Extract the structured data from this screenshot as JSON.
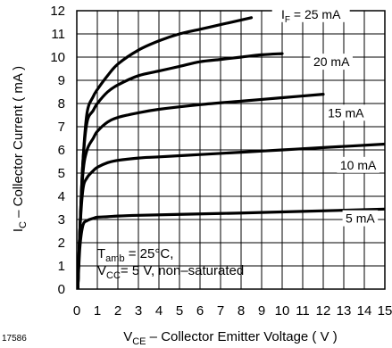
{
  "chart_data": {
    "type": "line",
    "figure_number": "17586",
    "xlabel_main": "V",
    "xlabel_sub": "CE",
    "xlabel_rest": " – Collector Emitter Voltage ( V )",
    "ylabel_main": "I",
    "ylabel_sub": "C",
    "ylabel_rest": " – Collector Current ( mA )",
    "xlim": [
      0,
      15
    ],
    "ylim": [
      0,
      12
    ],
    "xticks": [
      0,
      1,
      2,
      3,
      4,
      5,
      6,
      7,
      8,
      9,
      10,
      11,
      12,
      13,
      14,
      15
    ],
    "yticks": [
      0,
      1,
      2,
      3,
      4,
      5,
      6,
      7,
      8,
      9,
      10,
      11,
      12
    ],
    "grid": true,
    "annotation": {
      "line1_main": "T",
      "line1_sub": "amb",
      "line1_rest": " = 25°C,",
      "line2_main": "V",
      "line2_sub": "CC",
      "line2_rest": "= 5 V, non–saturated"
    },
    "series": [
      {
        "name": "I_F = 25 mA",
        "label_main": "I",
        "label_sub": "F",
        "label_rest": " = 25 mA",
        "x": [
          0.05,
          0.15,
          0.3,
          0.5,
          0.8,
          1,
          1.5,
          2,
          3,
          4,
          5,
          6,
          7,
          8,
          8.5
        ],
        "y": [
          0,
          2.5,
          5.5,
          7.6,
          8.3,
          8.6,
          9.2,
          9.7,
          10.3,
          10.7,
          11.0,
          11.2,
          11.4,
          11.6,
          11.7
        ]
      },
      {
        "name": "20 mA",
        "x": [
          0.05,
          0.15,
          0.3,
          0.5,
          0.8,
          1,
          1.5,
          2,
          3,
          4,
          5,
          6,
          7,
          8,
          9,
          10
        ],
        "y": [
          0,
          2.5,
          5.5,
          7.2,
          7.7,
          8.0,
          8.5,
          8.8,
          9.2,
          9.4,
          9.6,
          9.8,
          9.9,
          10.0,
          10.1,
          10.15
        ]
      },
      {
        "name": "15 mA",
        "x": [
          0.05,
          0.15,
          0.3,
          0.5,
          0.8,
          1,
          1.5,
          2,
          3,
          4,
          6,
          8,
          10,
          12
        ],
        "y": [
          0,
          2.5,
          5.0,
          6.0,
          6.5,
          6.8,
          7.2,
          7.4,
          7.6,
          7.75,
          7.95,
          8.1,
          8.25,
          8.4
        ]
      },
      {
        "name": "10 mA",
        "x": [
          0.05,
          0.15,
          0.3,
          0.5,
          0.8,
          1,
          1.5,
          2,
          3,
          4,
          6,
          8,
          10,
          12,
          15
        ],
        "y": [
          0,
          2.5,
          4.3,
          4.8,
          5.1,
          5.25,
          5.45,
          5.55,
          5.65,
          5.7,
          5.8,
          5.9,
          6.0,
          6.1,
          6.25
        ]
      },
      {
        "name": "5 mA",
        "x": [
          0.05,
          0.15,
          0.3,
          0.5,
          0.8,
          1,
          1.5,
          2,
          3,
          5,
          8,
          11,
          15
        ],
        "y": [
          0,
          1.8,
          2.75,
          2.95,
          3.05,
          3.1,
          3.12,
          3.15,
          3.18,
          3.22,
          3.28,
          3.35,
          3.45
        ]
      }
    ],
    "label_positions_data": [
      {
        "series": 0,
        "x": 11.4,
        "y": 11.7
      },
      {
        "series": 1,
        "x": 12.4,
        "y": 9.65
      },
      {
        "series": 2,
        "x": 13.1,
        "y": 7.45
      },
      {
        "series": 3,
        "x": 13.7,
        "y": 5.2
      },
      {
        "series": 4,
        "x": 13.8,
        "y": 2.9
      }
    ]
  }
}
